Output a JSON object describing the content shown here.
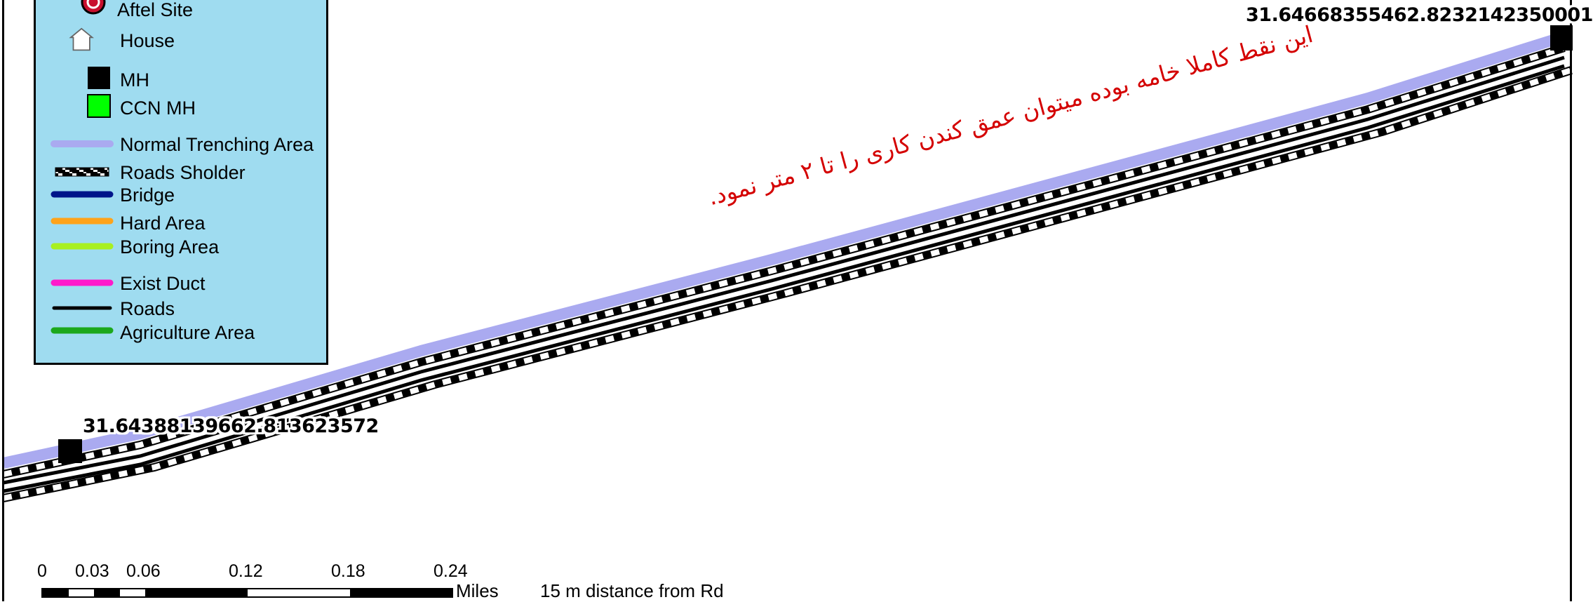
{
  "legend": {
    "items": [
      {
        "label": "Aftel Site",
        "symbol": "aftel-site-icon"
      },
      {
        "label": "House",
        "symbol": "house-icon"
      },
      {
        "label": "MH",
        "symbol": "black-square",
        "color": "#000000"
      },
      {
        "label": "CCN MH",
        "symbol": "green-square",
        "color": "#00ff00"
      },
      {
        "label": "Normal Trenching Area",
        "symbol": "line",
        "color": "#aaaaf0"
      },
      {
        "label": "Roads Sholder",
        "symbol": "checkered-line"
      },
      {
        "label": "Bridge",
        "symbol": "line",
        "color": "#00158a"
      },
      {
        "label": "Hard Area",
        "symbol": "line",
        "color": "#ffa31a"
      },
      {
        "label": "Boring Area",
        "symbol": "line",
        "color": "#a8f020"
      },
      {
        "label": "Exist Duct",
        "symbol": "line",
        "color": "#ff1acb"
      },
      {
        "label": "Roads",
        "symbol": "line",
        "color": "#000000"
      },
      {
        "label": "Agriculture Area",
        "symbol": "line",
        "color": "#1ca81c"
      }
    ]
  },
  "labels": {
    "mh_left": "31.64388139662.813623572",
    "mh_right": "31.64668355462.8232142350001",
    "note": "این نقط کاملا خامه بوده میتوان عمق کندن کاری را تا ۲ متر نمود."
  },
  "scalebar": {
    "ticks": [
      "0",
      "0.03",
      "0.06",
      "0.12",
      "0.18",
      "0.24"
    ],
    "units": "Miles"
  },
  "footer": {
    "distance_note": "15 m distance from Rd"
  },
  "colors": {
    "trench": "#aaaaf0",
    "legend_bg": "#9fdcf0",
    "note": "#d40000"
  }
}
